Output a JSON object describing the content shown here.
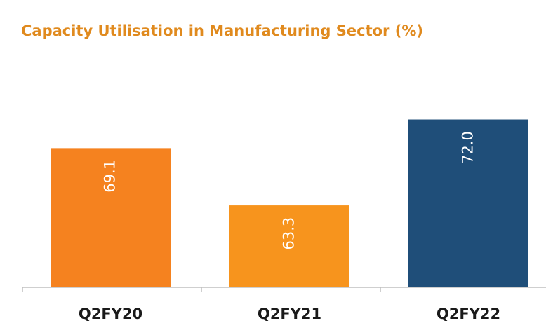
{
  "chart_data": {
    "type": "bar",
    "title": "Capacity Utilisation in Manufacturing Sector (%)",
    "categories": [
      "Q2FY20",
      "Q2FY21",
      "Q2FY22"
    ],
    "values": [
      69.1,
      63.3,
      72.0
    ],
    "value_labels": [
      "69.1",
      "63.3",
      "72.0"
    ],
    "colors": [
      "#f5821f",
      "#f7941d",
      "#1f4e79"
    ],
    "ylim": [
      55,
      78
    ]
  }
}
